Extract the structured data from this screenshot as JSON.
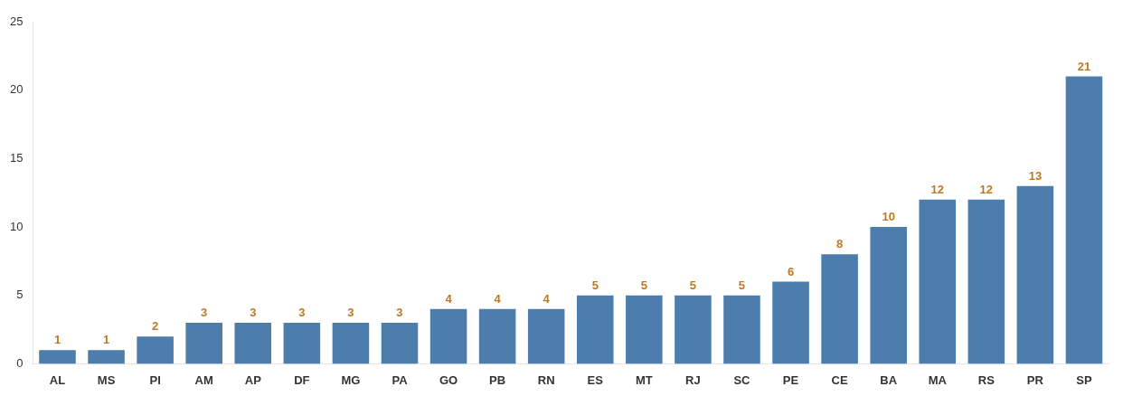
{
  "chart_data": {
    "type": "bar",
    "categories": [
      "AL",
      "MS",
      "PI",
      "AM",
      "AP",
      "DF",
      "MG",
      "PA",
      "GO",
      "PB",
      "RN",
      "ES",
      "MT",
      "RJ",
      "SC",
      "PE",
      "CE",
      "BA",
      "MA",
      "RS",
      "PR",
      "SP"
    ],
    "values": [
      1,
      1,
      2,
      3,
      3,
      3,
      3,
      3,
      4,
      4,
      4,
      5,
      5,
      5,
      5,
      6,
      8,
      10,
      12,
      12,
      13,
      21
    ],
    "color": "#4d7dac",
    "ylim": [
      0,
      25
    ],
    "yticks": [
      0,
      5,
      10,
      15,
      20,
      25
    ],
    "grid": false,
    "data_labels": true
  }
}
